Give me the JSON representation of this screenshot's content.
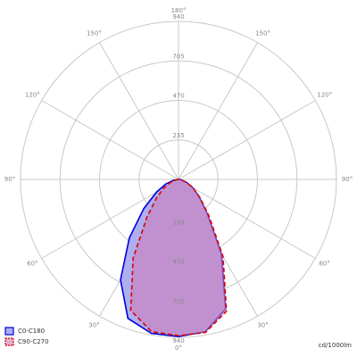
{
  "chart_data": {
    "type": "polar",
    "unit_label": "cd/1000lm",
    "angles": [
      -90,
      -80,
      -70,
      -60,
      -50,
      -40,
      -30,
      -20,
      -10,
      0,
      10,
      20,
      30,
      40,
      50,
      60,
      70,
      80,
      90
    ],
    "rlim": [
      0,
      940
    ],
    "rticks": [
      235,
      470,
      705,
      940
    ],
    "thetaticks": [
      {
        "value": 0,
        "label": "0°"
      },
      {
        "value": 30,
        "label": "30°"
      },
      {
        "value": 60,
        "label": "60°"
      },
      {
        "value": 90,
        "label": "90°"
      },
      {
        "value": 120,
        "label": "120°"
      },
      {
        "value": 150,
        "label": "150°"
      },
      {
        "value": 180,
        "label": "180°"
      }
    ],
    "series": [
      {
        "name": "C0-C180",
        "color": "#0000dd",
        "fill": "#aeaef0",
        "values": [
          0,
          30,
          80,
          150,
          270,
          455,
          690,
          880,
          930,
          935,
          920,
          820,
          510,
          267,
          160,
          96,
          50,
          15,
          0
        ]
      },
      {
        "name": "C90-C270",
        "color": "#dd0000",
        "fill": "rgba(205,125,185,0.6)",
        "dash": true,
        "values": [
          0,
          15,
          50,
          100,
          170,
          290,
          540,
          830,
          920,
          930,
          925,
          835,
          530,
          280,
          165,
          100,
          50,
          15,
          0
        ]
      }
    ]
  }
}
